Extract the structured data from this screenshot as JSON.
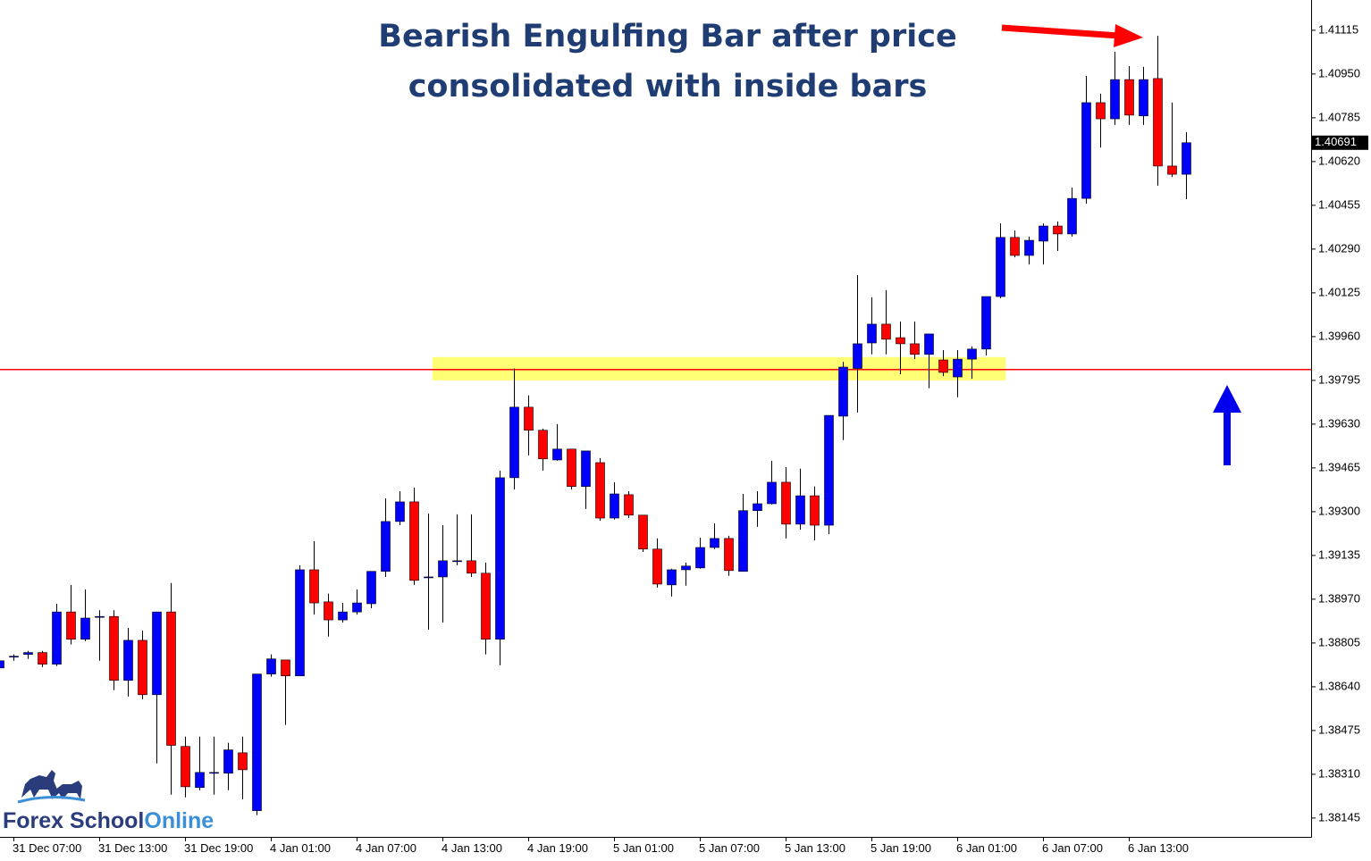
{
  "chart_data": {
    "type": "candlestick",
    "annotation": [
      "Bearish Engulfing Bar after price",
      "consolidated with inside bars"
    ],
    "categories": [
      null,
      "31 Dec 07:00",
      null,
      null,
      null,
      null,
      null,
      "31 Dec 13:00",
      null,
      null,
      null,
      null,
      null,
      "31 Dec 19:00",
      null,
      null,
      null,
      null,
      null,
      "4 Jan 01:00",
      null,
      null,
      null,
      null,
      null,
      "4 Jan 07:00",
      null,
      null,
      null,
      null,
      null,
      "4 Jan 13:00",
      null,
      null,
      null,
      null,
      null,
      "4 Jan 19:00",
      null,
      null,
      null,
      null,
      null,
      "5 Jan 01:00",
      null,
      null,
      null,
      null,
      null,
      "5 Jan 07:00",
      null,
      null,
      null,
      null,
      null,
      "5 Jan 13:00",
      null,
      null,
      null,
      null,
      null,
      "5 Jan 19:00",
      null,
      null,
      null,
      null,
      null,
      "6 Jan 01:00",
      null,
      null,
      null,
      null,
      null,
      "6 Jan 07:00",
      null,
      null,
      null,
      null,
      null,
      "6 Jan 13:00",
      null,
      null,
      null,
      null
    ],
    "open": [
      1.38711,
      1.38752,
      1.38762,
      1.38769,
      1.38725,
      1.38922,
      1.38819,
      1.38905,
      1.38905,
      1.38664,
      1.38815,
      1.3861,
      1.38922,
      1.38415,
      1.3826,
      1.38314,
      1.38314,
      1.38391,
      1.38173,
      1.38688,
      1.38741,
      1.38681,
      1.39081,
      1.3896,
      1.38892,
      1.38922,
      1.38953,
      1.39075,
      1.39263,
      1.39337,
      1.39054,
      1.39054,
      1.39115,
      1.39115,
      1.39068,
      1.38819,
      1.39428,
      1.39694,
      1.39607,
      1.39495,
      1.39536,
      1.39395,
      1.39485,
      1.39276,
      1.39364,
      1.39287,
      1.39159,
      1.39024,
      1.39081,
      1.39088,
      1.39165,
      1.39199,
      1.39075,
      1.39304,
      1.3933,
      1.39411,
      1.39253,
      1.3936,
      1.39249,
      1.3966,
      1.3984,
      1.39936,
      1.40007,
      1.39956,
      1.39933,
      1.39893,
      1.39872,
      1.39808,
      1.39875,
      1.39913,
      1.40111,
      1.40334,
      1.40266,
      1.4032,
      1.40377,
      1.40347,
      1.40481,
      1.40842,
      1.40781,
      1.40929,
      1.40792,
      1.40933,
      1.40603,
      1.40572
    ],
    "high": [
      1.38755,
      1.38762,
      1.38775,
      1.38775,
      1.38953,
      1.39024,
      1.39007,
      1.38929,
      1.38929,
      1.38862,
      1.38852,
      1.38922,
      1.39031,
      1.38452,
      1.38452,
      1.38452,
      1.38429,
      1.38452,
      1.38688,
      1.38762,
      1.38741,
      1.39098,
      1.39189,
      1.38991,
      1.38956,
      1.39007,
      1.39075,
      1.3935,
      1.39377,
      1.39391,
      1.39293,
      1.39249,
      1.3929,
      1.3929,
      1.39108,
      1.39455,
      1.3984,
      1.39738,
      1.39613,
      1.3963,
      1.39536,
      1.39529,
      1.39502,
      1.39411,
      1.39377,
      1.39287,
      1.39199,
      1.39085,
      1.39108,
      1.39202,
      1.39256,
      1.39209,
      1.39367,
      1.39377,
      1.39492,
      1.39468,
      1.39462,
      1.39395,
      1.39663,
      1.39865,
      1.40192,
      1.40108,
      1.40135,
      1.40017,
      1.40017,
      1.3997,
      1.39909,
      1.39909,
      1.39923,
      1.40111,
      1.40387,
      1.4036,
      1.40337,
      1.40387,
      1.40394,
      1.40522,
      1.40943,
      1.40876,
      1.41034,
      1.4098,
      1.40977,
      1.41094,
      1.40842,
      1.40731
    ],
    "low": [
      1.38704,
      1.38738,
      1.38745,
      1.38714,
      1.38718,
      1.38799,
      1.38812,
      1.38738,
      1.38627,
      1.38603,
      1.38593,
      1.38351,
      1.38233,
      1.38223,
      1.3825,
      1.38233,
      1.3825,
      1.38216,
      1.38156,
      1.38678,
      1.38496,
      1.38681,
      1.38912,
      1.38829,
      1.38882,
      1.38912,
      1.38936,
      1.39054,
      1.39249,
      1.39024,
      1.38855,
      1.38882,
      1.39098,
      1.39054,
      1.38762,
      1.38721,
      1.39384,
      1.39512,
      1.39455,
      1.39492,
      1.39384,
      1.3931,
      1.39266,
      1.3927,
      1.39276,
      1.39148,
      1.39014,
      1.3898,
      1.39021,
      1.39085,
      1.39159,
      1.39058,
      1.39075,
      1.39243,
      1.39327,
      1.39199,
      1.39232,
      1.39192,
      1.39215,
      1.3957,
      1.39674,
      1.39893,
      1.39893,
      1.39818,
      1.39875,
      1.39765,
      1.39811,
      1.39731,
      1.39801,
      1.39889,
      1.40105,
      1.40259,
      1.40232,
      1.40232,
      1.40283,
      1.40337,
      1.40461,
      1.40673,
      1.40758,
      1.40758,
      1.40758,
      1.40529,
      1.40562,
      1.40478
    ],
    "close": [
      1.38738,
      1.38755,
      1.38769,
      1.38725,
      1.38922,
      1.38819,
      1.38899,
      1.38905,
      1.38664,
      1.38815,
      1.3861,
      1.38922,
      1.38419,
      1.38263,
      1.38317,
      1.38317,
      1.38402,
      1.38327,
      1.38688,
      1.38745,
      1.38681,
      1.39081,
      1.38956,
      1.38892,
      1.38922,
      1.38956,
      1.39075,
      1.39263,
      1.39337,
      1.39041,
      1.39054,
      1.39115,
      1.39115,
      1.39068,
      1.38819,
      1.39428,
      1.39694,
      1.39607,
      1.39499,
      1.39536,
      1.39395,
      1.39529,
      1.39276,
      1.39367,
      1.39287,
      1.39159,
      1.39027,
      1.39081,
      1.39095,
      1.39165,
      1.39199,
      1.39078,
      1.39304,
      1.3933,
      1.39411,
      1.39253,
      1.3936,
      1.39249,
      1.39663,
      1.39845,
      1.39933,
      1.40007,
      1.3995,
      1.39933,
      1.39893,
      1.3997,
      1.39825,
      1.39875,
      1.39913,
      1.40111,
      1.40334,
      1.40266,
      1.40323,
      1.40377,
      1.40347,
      1.40481,
      1.40842,
      1.40781,
      1.40929,
      1.40795,
      1.40929,
      1.40603,
      1.40572,
      1.40691
    ],
    "up_color": "#0000ff",
    "down_color": "#ff0000",
    "wick_color": "#000000",
    "ylim": [
      1.38074,
      1.41229
    ],
    "yticks": [
      1.41115,
      {
        "value": 1.4095,
        "label": "1.40950"
      },
      1.40785,
      {
        "value": 1.4062,
        "label": "1.40620"
      },
      1.40455,
      {
        "value": 1.4029,
        "label": "1.40290"
      },
      1.40125,
      {
        "value": 1.3996,
        "label": "1.39960"
      },
      1.39795,
      {
        "value": 1.3963,
        "label": "1.39630"
      },
      1.39465,
      {
        "value": 1.393,
        "label": "1.39300"
      },
      1.39135,
      {
        "value": 1.3897,
        "label": "1.38970"
      },
      1.38805,
      {
        "value": 1.3864,
        "label": "1.38640"
      },
      1.38475,
      {
        "value": 1.3831,
        "label": "1.38310"
      },
      1.38145
    ],
    "last_price": 1.40691,
    "hline": 1.39836,
    "hline_color": "#ff0000",
    "zone": [
      1.39795,
      1.39883
    ],
    "zone_span": [
      30.3,
      70.4
    ],
    "zone_color": "#ffff66"
  },
  "logo": [
    "Forex School",
    "Online"
  ]
}
